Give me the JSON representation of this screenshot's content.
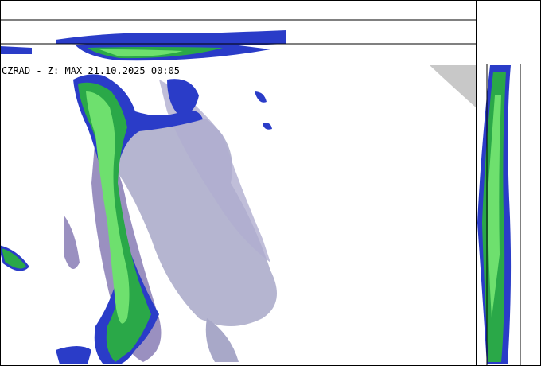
{
  "map": {
    "caption": "CZRAD - Z: MAX 21.10.2025 00:05"
  }
}
